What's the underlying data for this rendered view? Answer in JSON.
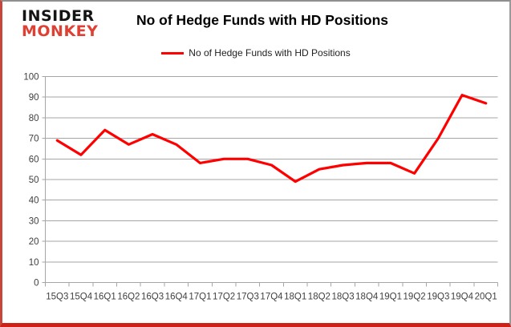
{
  "logo": {
    "line1": "INSIDER",
    "line2": "MONKEY"
  },
  "header": {
    "title": "No of Hedge Funds with HD Positions"
  },
  "legend": {
    "label": "No of Hedge Funds with HD Positions"
  },
  "colors": {
    "line": "#ff0000",
    "logo_black": "#141414",
    "logo_red": "#df4034",
    "grid": "#a6a6a6",
    "axis_text": "#3f3f3f"
  },
  "chart_data": {
    "type": "line",
    "title": "No of Hedge Funds with HD Positions",
    "categories": [
      "15Q3",
      "15Q4",
      "16Q1",
      "16Q2",
      "16Q3",
      "16Q4",
      "17Q1",
      "17Q2",
      "17Q3",
      "17Q4",
      "18Q1",
      "18Q2",
      "18Q3",
      "18Q4",
      "19Q1",
      "19Q2",
      "19Q3",
      "19Q4",
      "20Q1"
    ],
    "series": [
      {
        "name": "No of Hedge Funds with HD Positions",
        "color": "#ff0000",
        "values": [
          69,
          62,
          74,
          67,
          72,
          67,
          58,
          60,
          60,
          57,
          49,
          55,
          57,
          58,
          58,
          53,
          70,
          91,
          87
        ]
      }
    ],
    "xlabel": "",
    "ylabel": "",
    "ylim": [
      0,
      100
    ],
    "ytick_step": 10,
    "grid": true,
    "legend_position": "top"
  }
}
